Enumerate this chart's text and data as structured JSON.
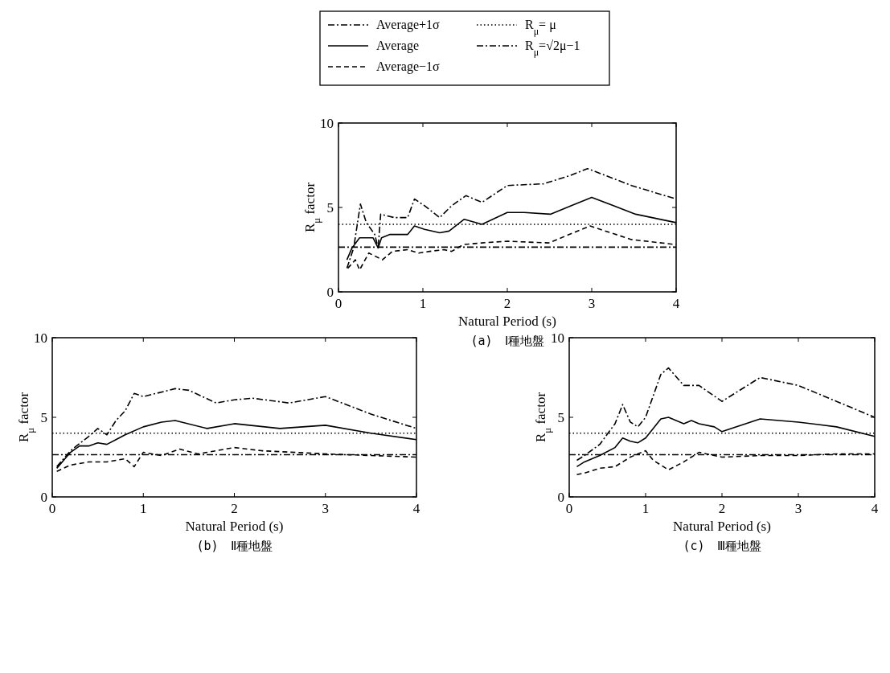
{
  "chart_data": [
    {
      "type": "line",
      "title": "(a)　Ⅰ種地盤",
      "xlabel": "Natural Period (s)",
      "ylabel": "R$_{μ}$ factor",
      "xlim": [
        0,
        4
      ],
      "ylim": [
        0,
        10
      ],
      "xticks": [
        0,
        1,
        2,
        3,
        4
      ],
      "yticks": [
        0,
        5,
        10
      ],
      "legend": "top",
      "series": [
        {
          "name": "Average+1σ",
          "color": "#000000",
          "line_style": "dashdot",
          "x": [
            0.1,
            0.18,
            0.26,
            0.33,
            0.43,
            0.47,
            0.5,
            0.66,
            0.82,
            0.9,
            1.02,
            1.2,
            1.34,
            1.51,
            1.7,
            2.0,
            2.43,
            2.75,
            2.95,
            3.47,
            4.0
          ],
          "values": [
            1.4,
            2.6,
            5.2,
            4.1,
            3.4,
            2.6,
            4.6,
            4.4,
            4.4,
            5.5,
            5.1,
            4.4,
            5.1,
            5.7,
            5.3,
            6.3,
            6.4,
            6.9,
            7.3,
            6.3,
            5.5
          ]
        },
        {
          "name": "Average",
          "color": "#000000",
          "line_style": "solid",
          "x": [
            0.1,
            0.16,
            0.25,
            0.31,
            0.41,
            0.47,
            0.51,
            0.61,
            0.82,
            0.9,
            1.02,
            1.2,
            1.31,
            1.49,
            1.7,
            2.0,
            2.2,
            2.51,
            3.0,
            3.52,
            4.0
          ],
          "values": [
            1.9,
            2.6,
            3.2,
            3.2,
            3.2,
            2.6,
            3.2,
            3.4,
            3.4,
            3.9,
            3.7,
            3.5,
            3.6,
            4.3,
            4.0,
            4.7,
            4.7,
            4.6,
            5.6,
            4.6,
            4.1
          ]
        },
        {
          "name": "Average−1σ",
          "color": "#000000",
          "line_style": "dashed",
          "x": [
            0.11,
            0.2,
            0.25,
            0.36,
            0.44,
            0.52,
            0.64,
            0.82,
            0.95,
            1.08,
            1.25,
            1.34,
            1.48,
            1.7,
            2.0,
            2.49,
            2.98,
            3.47,
            4.0
          ],
          "values": [
            1.4,
            1.9,
            1.3,
            2.3,
            2.1,
            1.9,
            2.4,
            2.5,
            2.3,
            2.4,
            2.5,
            2.4,
            2.8,
            2.9,
            3.0,
            2.9,
            3.9,
            3.1,
            2.8
          ]
        },
        {
          "name": "R$_{μ}$= μ",
          "color": "#000000",
          "line_style": "dotted",
          "x": [
            0,
            4
          ],
          "values": [
            4,
            4
          ]
        },
        {
          "name": "R$_{μ}$=√2μ−1",
          "color": "#000000",
          "line_style": "dashdot",
          "x": [
            0,
            4
          ],
          "values": [
            2.65,
            2.65
          ]
        }
      ]
    },
    {
      "type": "line",
      "title": "(b)　Ⅱ種地盤",
      "xlabel": "Natural Period (s)",
      "ylabel": "R$_{μ}$ factor",
      "xlim": [
        0,
        4
      ],
      "ylim": [
        0,
        10
      ],
      "xticks": [
        0,
        1,
        2,
        3,
        4
      ],
      "yticks": [
        0,
        5,
        10
      ],
      "series": [
        {
          "color": "#000000",
          "line_style": "dashdot",
          "x": [
            0.05,
            0.2,
            0.4,
            0.5,
            0.6,
            0.7,
            0.8,
            0.9,
            1.0,
            1.35,
            1.5,
            1.8,
            2.0,
            2.2,
            2.6,
            3.0,
            3.5,
            4.0
          ],
          "values": [
            1.9,
            2.9,
            3.8,
            4.3,
            3.9,
            4.8,
            5.4,
            6.5,
            6.3,
            6.8,
            6.7,
            5.9,
            6.1,
            6.2,
            5.9,
            6.3,
            5.2,
            4.3
          ]
        },
        {
          "color": "#000000",
          "line_style": "solid",
          "x": [
            0.05,
            0.2,
            0.3,
            0.4,
            0.5,
            0.6,
            0.7,
            0.8,
            1.0,
            1.2,
            1.35,
            1.7,
            2.0,
            2.5,
            3.0,
            3.5,
            4.0
          ],
          "values": [
            1.8,
            2.8,
            3.2,
            3.2,
            3.4,
            3.3,
            3.6,
            3.9,
            4.4,
            4.7,
            4.8,
            4.3,
            4.6,
            4.3,
            4.5,
            4.0,
            3.6
          ]
        },
        {
          "color": "#000000",
          "line_style": "dashed",
          "x": [
            0.05,
            0.2,
            0.4,
            0.6,
            0.8,
            0.9,
            1.0,
            1.2,
            1.4,
            1.6,
            2.0,
            2.3,
            3.0,
            3.5,
            4.0
          ],
          "values": [
            1.6,
            2.0,
            2.2,
            2.2,
            2.4,
            1.9,
            2.8,
            2.6,
            3.0,
            2.7,
            3.1,
            2.9,
            2.7,
            2.6,
            2.5
          ]
        },
        {
          "color": "#000000",
          "line_style": "dotted",
          "x": [
            0,
            4
          ],
          "values": [
            4,
            4
          ]
        },
        {
          "color": "#000000",
          "line_style": "dashdot",
          "x": [
            0,
            4
          ],
          "values": [
            2.65,
            2.65
          ]
        }
      ]
    },
    {
      "type": "line",
      "title": "(c)　Ⅲ種地盤",
      "xlabel": "Natural Period (s)",
      "ylabel": "R$_{μ}$ factor",
      "xlim": [
        0,
        4
      ],
      "ylim": [
        0,
        10
      ],
      "xticks": [
        0,
        1,
        2,
        3,
        4
      ],
      "yticks": [
        0,
        5,
        10
      ],
      "series": [
        {
          "color": "#000000",
          "line_style": "dashdot",
          "x": [
            0.1,
            0.2,
            0.4,
            0.6,
            0.7,
            0.8,
            0.9,
            1.0,
            1.2,
            1.3,
            1.5,
            1.7,
            2.0,
            2.5,
            3.0,
            3.5,
            4.0
          ],
          "values": [
            2.3,
            2.6,
            3.3,
            4.6,
            5.8,
            4.7,
            4.4,
            5.0,
            7.7,
            8.1,
            7.0,
            7.0,
            6.0,
            7.5,
            7.0,
            6.0,
            5.0
          ]
        },
        {
          "color": "#000000",
          "line_style": "solid",
          "x": [
            0.1,
            0.2,
            0.4,
            0.6,
            0.7,
            0.8,
            0.9,
            1.0,
            1.2,
            1.3,
            1.5,
            1.6,
            1.7,
            1.9,
            2.0,
            2.5,
            3.0,
            3.5,
            4.0
          ],
          "values": [
            1.9,
            2.2,
            2.6,
            3.1,
            3.7,
            3.5,
            3.4,
            3.7,
            4.9,
            5.0,
            4.6,
            4.8,
            4.6,
            4.4,
            4.1,
            4.9,
            4.7,
            4.4,
            3.8
          ]
        },
        {
          "color": "#000000",
          "line_style": "dashed",
          "x": [
            0.1,
            0.2,
            0.4,
            0.6,
            0.8,
            1.0,
            1.1,
            1.3,
            1.5,
            1.7,
            2.0,
            2.5,
            3.0,
            3.5,
            4.0
          ],
          "values": [
            1.4,
            1.5,
            1.8,
            1.9,
            2.5,
            2.9,
            2.3,
            1.7,
            2.2,
            2.8,
            2.5,
            2.6,
            2.6,
            2.7,
            2.7
          ]
        },
        {
          "color": "#000000",
          "line_style": "dotted",
          "x": [
            0,
            4
          ],
          "values": [
            4,
            4
          ]
        },
        {
          "color": "#000000",
          "line_style": "dashdot",
          "x": [
            0,
            4
          ],
          "values": [
            2.65,
            2.65
          ]
        }
      ]
    }
  ]
}
